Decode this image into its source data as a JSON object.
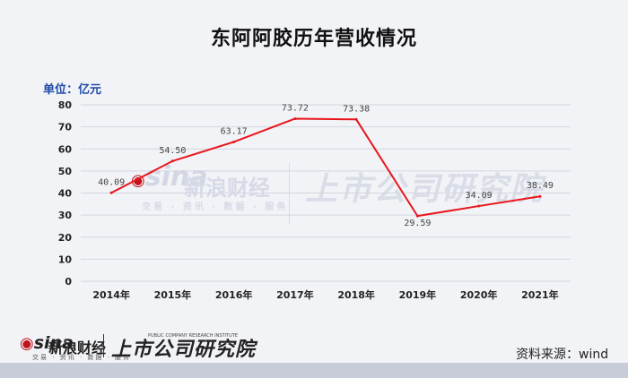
{
  "title": "东阿阿胶历年营收情况",
  "unit_label": "单位：亿元",
  "source": "资料来源：wind",
  "watermark": {
    "sina_logo": "sina",
    "sina_name": "新浪财经",
    "sina_tagline": "交易 · 资讯 · 数据 · 服务",
    "publisher": "上市公司研究院"
  },
  "footer_logo": {
    "sina_logo": "sina",
    "sina_name": "新浪财经",
    "sina_tagline": "交易 · 资讯 · 数据 · 服务",
    "publisher": "上市公司研究院",
    "publisher_en": "PUBLIC COMPANY RESEARCH INSTITUTE"
  },
  "colors": {
    "line": "#e8161b",
    "grid": "#d3d6de",
    "unit": "#1f4aa8"
  },
  "chart_data": {
    "type": "line",
    "title": "东阿阿胶历年营收情况",
    "categories": [
      "2014年",
      "2015年",
      "2016年",
      "2017年",
      "2018年",
      "2019年",
      "2020年",
      "2021年"
    ],
    "series": [
      {
        "values": [
          40.09,
          54.5,
          63.17,
          73.72,
          73.38,
          29.59,
          34.09,
          38.49
        ],
        "labels": [
          "40.09",
          "54.50",
          "63.17",
          "73.72",
          "73.38",
          "29.59",
          "34.09",
          "38.49"
        ]
      }
    ],
    "yticks": [
      "0",
      "10",
      "20",
      "30",
      "40",
      "50",
      "60",
      "70",
      "80"
    ],
    "ylim": [
      0,
      80
    ],
    "grid": true,
    "legend": "none"
  }
}
